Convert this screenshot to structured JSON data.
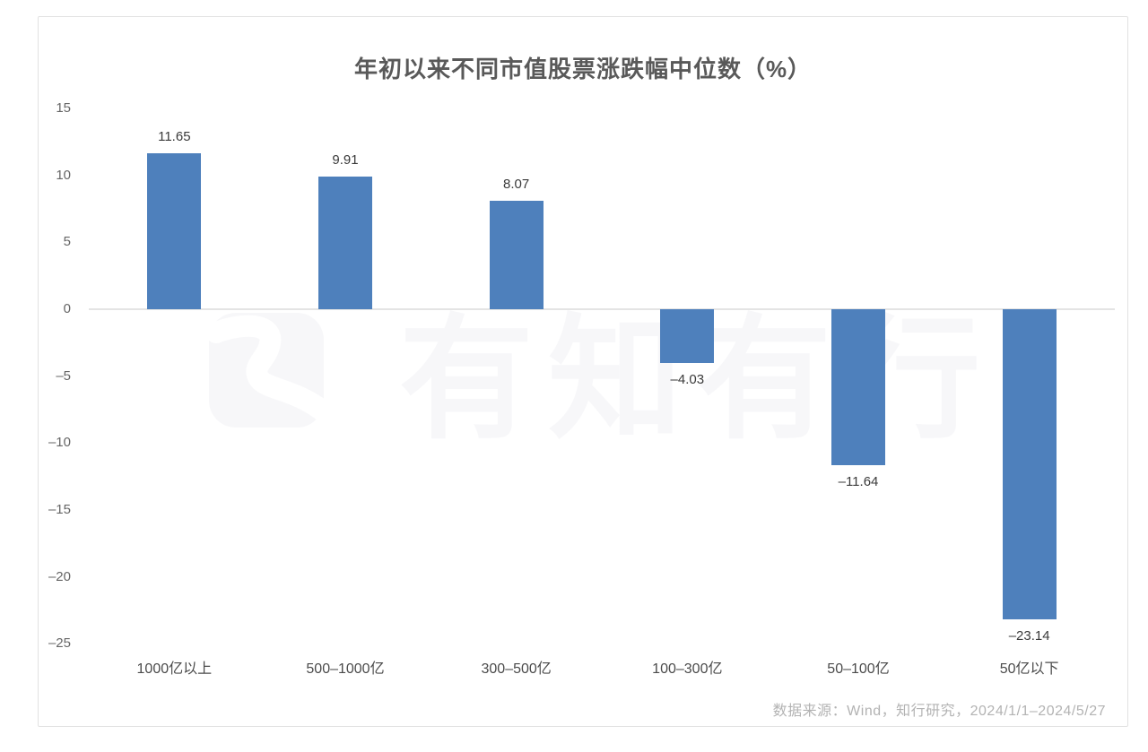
{
  "page": {
    "title": "年初以来不同市值股票涨跌幅中位数（%）",
    "source": "数据来源：Wind，知行研究，2024/1/1–2024/5/27",
    "watermark_text": "有知有行"
  },
  "chart_data": {
    "type": "bar",
    "title": "年初以来不同市值股票涨跌幅中位数（%）",
    "categories": [
      "1000亿以上",
      "500–1000亿",
      "300–500亿",
      "100–300亿",
      "50–100亿",
      "50亿以下"
    ],
    "values": [
      11.65,
      9.91,
      8.07,
      -4.03,
      -11.64,
      -23.14
    ],
    "value_labels": [
      "11.65",
      "9.91",
      "8.07",
      "–4.03",
      "–11.64",
      "–23.14"
    ],
    "xlabel": "",
    "ylabel": "",
    "y_ticks": [
      15,
      10,
      5,
      0,
      -5,
      -10,
      -15,
      -20,
      -25
    ],
    "y_tick_labels": [
      "15",
      "10",
      "5",
      "0",
      "–5",
      "–10",
      "–15",
      "–20",
      "–25"
    ],
    "ylim": [
      -25,
      15
    ],
    "grid": false,
    "legend": "none",
    "bar_color": "#4e80bc",
    "source": "数据来源：Wind，知行研究，2024/1/1–2024/5/27"
  }
}
